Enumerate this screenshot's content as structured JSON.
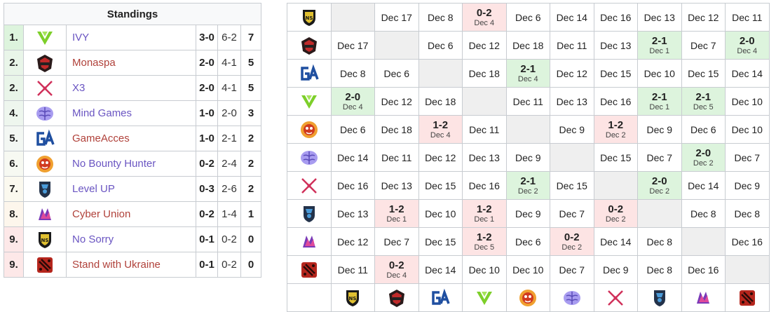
{
  "standings": {
    "title": "Standings",
    "rows": [
      {
        "rank": "1.",
        "team": "IVY",
        "logo": "ivy-logo",
        "series": "3-0",
        "games": "6-2",
        "points": "7",
        "color": "purple",
        "rc": "rank-1"
      },
      {
        "rank": "2.",
        "team": "Monaspa",
        "logo": "monaspa-logo",
        "series": "2-0",
        "games": "4-1",
        "points": "5",
        "color": "red",
        "rc": "rank-2"
      },
      {
        "rank": "2.",
        "team": "X3",
        "logo": "x3-logo",
        "series": "2-0",
        "games": "4-1",
        "points": "5",
        "color": "purple",
        "rc": "rank-2"
      },
      {
        "rank": "4.",
        "team": "Mind Games",
        "logo": "mind-games-logo",
        "series": "1-0",
        "games": "2-0",
        "points": "3",
        "color": "purple",
        "rc": "rank-4"
      },
      {
        "rank": "5.",
        "team": "GameAcces",
        "logo": "gameacces-logo",
        "series": "1-0",
        "games": "2-1",
        "points": "2",
        "color": "red",
        "rc": "rank-5"
      },
      {
        "rank": "6.",
        "team": "No Bounty Hunter",
        "logo": "no-bounty-hunter-logo",
        "series": "0-2",
        "games": "2-4",
        "points": "2",
        "color": "purple",
        "rc": "rank-6"
      },
      {
        "rank": "7.",
        "team": "Level UP",
        "logo": "level-up-logo",
        "series": "0-3",
        "games": "2-6",
        "points": "2",
        "color": "purple",
        "rc": "rank-7"
      },
      {
        "rank": "8.",
        "team": "Cyber Union",
        "logo": "cyber-union-logo",
        "series": "0-2",
        "games": "1-4",
        "points": "1",
        "color": "red",
        "rc": "rank-8"
      },
      {
        "rank": "9.",
        "team": "No Sorry",
        "logo": "no-sorry-logo",
        "series": "0-1",
        "games": "0-2",
        "points": "0",
        "color": "purple",
        "rc": "rank-9"
      },
      {
        "rank": "9.",
        "team": "Stand with Ukraine",
        "logo": "stand-with-ukraine-logo",
        "series": "0-1",
        "games": "0-2",
        "points": "0",
        "color": "red",
        "rc": "rank-9"
      }
    ]
  },
  "crosstable": {
    "order": [
      "no-sorry-logo",
      "monaspa-logo",
      "gameacces-logo",
      "ivy-logo",
      "no-bounty-hunter-logo",
      "mind-games-logo",
      "x3-logo",
      "level-up-logo",
      "cyber-union-logo",
      "stand-with-ukraine-logo"
    ],
    "rows": [
      [
        {
          "t": "self"
        },
        {
          "t": "date",
          "v": "Dec 17"
        },
        {
          "t": "date",
          "v": "Dec 8"
        },
        {
          "t": "loss",
          "s": "0-2",
          "d": "Dec 4"
        },
        {
          "t": "date",
          "v": "Dec 6"
        },
        {
          "t": "date",
          "v": "Dec 14"
        },
        {
          "t": "date",
          "v": "Dec 16"
        },
        {
          "t": "date",
          "v": "Dec 13"
        },
        {
          "t": "date",
          "v": "Dec 12"
        },
        {
          "t": "date",
          "v": "Dec 11"
        }
      ],
      [
        {
          "t": "date",
          "v": "Dec 17"
        },
        {
          "t": "self"
        },
        {
          "t": "date",
          "v": "Dec 6"
        },
        {
          "t": "date",
          "v": "Dec 12"
        },
        {
          "t": "date",
          "v": "Dec 18"
        },
        {
          "t": "date",
          "v": "Dec 11"
        },
        {
          "t": "date",
          "v": "Dec 13"
        },
        {
          "t": "win",
          "s": "2-1",
          "d": "Dec 1"
        },
        {
          "t": "date",
          "v": "Dec 7"
        },
        {
          "t": "win",
          "s": "2-0",
          "d": "Dec 4"
        }
      ],
      [
        {
          "t": "date",
          "v": "Dec 8"
        },
        {
          "t": "date",
          "v": "Dec 6"
        },
        {
          "t": "self"
        },
        {
          "t": "date",
          "v": "Dec 18"
        },
        {
          "t": "win",
          "s": "2-1",
          "d": "Dec 4"
        },
        {
          "t": "date",
          "v": "Dec 12"
        },
        {
          "t": "date",
          "v": "Dec 15"
        },
        {
          "t": "date",
          "v": "Dec 10"
        },
        {
          "t": "date",
          "v": "Dec 15"
        },
        {
          "t": "date",
          "v": "Dec 14"
        }
      ],
      [
        {
          "t": "win",
          "s": "2-0",
          "d": "Dec 4"
        },
        {
          "t": "date",
          "v": "Dec 12"
        },
        {
          "t": "date",
          "v": "Dec 18"
        },
        {
          "t": "self"
        },
        {
          "t": "date",
          "v": "Dec 11"
        },
        {
          "t": "date",
          "v": "Dec 13"
        },
        {
          "t": "date",
          "v": "Dec 16"
        },
        {
          "t": "win",
          "s": "2-1",
          "d": "Dec 1"
        },
        {
          "t": "win",
          "s": "2-1",
          "d": "Dec 5"
        },
        {
          "t": "date",
          "v": "Dec 10"
        }
      ],
      [
        {
          "t": "date",
          "v": "Dec 6"
        },
        {
          "t": "date",
          "v": "Dec 18"
        },
        {
          "t": "loss",
          "s": "1-2",
          "d": "Dec 4"
        },
        {
          "t": "date",
          "v": "Dec 11"
        },
        {
          "t": "self"
        },
        {
          "t": "date",
          "v": "Dec 9"
        },
        {
          "t": "loss",
          "s": "1-2",
          "d": "Dec 2"
        },
        {
          "t": "date",
          "v": "Dec 9"
        },
        {
          "t": "date",
          "v": "Dec 6"
        },
        {
          "t": "date",
          "v": "Dec 10"
        }
      ],
      [
        {
          "t": "date",
          "v": "Dec 14"
        },
        {
          "t": "date",
          "v": "Dec 11"
        },
        {
          "t": "date",
          "v": "Dec 12"
        },
        {
          "t": "date",
          "v": "Dec 13"
        },
        {
          "t": "date",
          "v": "Dec 9"
        },
        {
          "t": "self"
        },
        {
          "t": "date",
          "v": "Dec 15"
        },
        {
          "t": "date",
          "v": "Dec 7"
        },
        {
          "t": "win",
          "s": "2-0",
          "d": "Dec 2"
        },
        {
          "t": "date",
          "v": "Dec 7"
        }
      ],
      [
        {
          "t": "date",
          "v": "Dec 16"
        },
        {
          "t": "date",
          "v": "Dec 13"
        },
        {
          "t": "date",
          "v": "Dec 15"
        },
        {
          "t": "date",
          "v": "Dec 16"
        },
        {
          "t": "win",
          "s": "2-1",
          "d": "Dec 2"
        },
        {
          "t": "date",
          "v": "Dec 15"
        },
        {
          "t": "self"
        },
        {
          "t": "win",
          "s": "2-0",
          "d": "Dec 2"
        },
        {
          "t": "date",
          "v": "Dec 14"
        },
        {
          "t": "date",
          "v": "Dec 9"
        }
      ],
      [
        {
          "t": "date",
          "v": "Dec 13"
        },
        {
          "t": "loss",
          "s": "1-2",
          "d": "Dec 1"
        },
        {
          "t": "date",
          "v": "Dec 10"
        },
        {
          "t": "loss",
          "s": "1-2",
          "d": "Dec 1"
        },
        {
          "t": "date",
          "v": "Dec 9"
        },
        {
          "t": "date",
          "v": "Dec 7"
        },
        {
          "t": "loss",
          "s": "0-2",
          "d": "Dec 2"
        },
        {
          "t": "self"
        },
        {
          "t": "date",
          "v": "Dec 8"
        },
        {
          "t": "date",
          "v": "Dec 8"
        }
      ],
      [
        {
          "t": "date",
          "v": "Dec 12"
        },
        {
          "t": "date",
          "v": "Dec 7"
        },
        {
          "t": "date",
          "v": "Dec 15"
        },
        {
          "t": "loss",
          "s": "1-2",
          "d": "Dec 5"
        },
        {
          "t": "date",
          "v": "Dec 6"
        },
        {
          "t": "loss",
          "s": "0-2",
          "d": "Dec 2"
        },
        {
          "t": "date",
          "v": "Dec 14"
        },
        {
          "t": "date",
          "v": "Dec 8"
        },
        {
          "t": "self"
        },
        {
          "t": "date",
          "v": "Dec 16"
        }
      ],
      [
        {
          "t": "date",
          "v": "Dec 11"
        },
        {
          "t": "loss",
          "s": "0-2",
          "d": "Dec 4"
        },
        {
          "t": "date",
          "v": "Dec 14"
        },
        {
          "t": "date",
          "v": "Dec 10"
        },
        {
          "t": "date",
          "v": "Dec 10"
        },
        {
          "t": "date",
          "v": "Dec 7"
        },
        {
          "t": "date",
          "v": "Dec 9"
        },
        {
          "t": "date",
          "v": "Dec 8"
        },
        {
          "t": "date",
          "v": "Dec 16"
        },
        {
          "t": "self"
        }
      ]
    ]
  },
  "colors": {
    "win": "#ddf4dd",
    "loss": "#fde4e4",
    "self": "#efefef",
    "border": "#c8ccd1",
    "link_purple": "#6a55c2",
    "link_red": "#b0413a"
  }
}
